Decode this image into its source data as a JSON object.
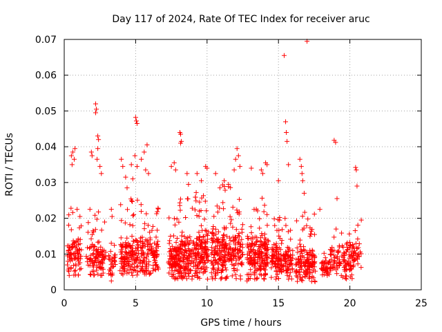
{
  "chart_data": {
    "type": "scatter",
    "title": "Day 117 of 2024, Rate Of TEC Index for receiver aruc",
    "xlabel": "GPS time / hours",
    "ylabel": "ROTI / TECUs",
    "xlim": [
      0,
      25
    ],
    "ylim": [
      0,
      0.07
    ],
    "xticks": [
      0,
      5,
      10,
      15,
      20,
      25
    ],
    "xtick_labels": [
      "0",
      "5",
      "10",
      "15",
      "20",
      "25"
    ],
    "yticks": [
      0,
      0.01,
      0.02,
      0.03,
      0.04,
      0.05,
      0.06,
      0.07
    ],
    "ytick_labels": [
      "0",
      "0.01",
      "0.02",
      "0.03",
      "0.04",
      "0.05",
      "0.06",
      "0.07"
    ],
    "grid": true,
    "marker": "plus",
    "color": "#ff0000",
    "clusters": [
      {
        "x": [
          0.2,
          1.2
        ],
        "y_range": [
          0.004,
          0.024
        ],
        "count": 90
      },
      {
        "x": [
          1.5,
          2.9
        ],
        "y_range": [
          0.004,
          0.022
        ],
        "count": 110
      },
      {
        "x": [
          3.1,
          3.6
        ],
        "y_range": [
          0.003,
          0.02
        ],
        "count": 30
      },
      {
        "x": [
          3.9,
          5.2
        ],
        "y_range": [
          0.004,
          0.026
        ],
        "count": 140
      },
      {
        "x": [
          5.3,
          6.6
        ],
        "y_range": [
          0.004,
          0.024
        ],
        "count": 130
      },
      {
        "x": [
          7.3,
          9.0
        ],
        "y_range": [
          0.003,
          0.026
        ],
        "count": 220
      },
      {
        "x": [
          9.0,
          10.1
        ],
        "y_range": [
          0.003,
          0.028
        ],
        "count": 150
      },
      {
        "x": [
          10.3,
          12.5
        ],
        "y_range": [
          0.003,
          0.03
        ],
        "count": 260
      },
      {
        "x": [
          12.8,
          14.3
        ],
        "y_range": [
          0.003,
          0.026
        ],
        "count": 200
      },
      {
        "x": [
          14.5,
          16.0
        ],
        "y_range": [
          0.003,
          0.022
        ],
        "count": 170
      },
      {
        "x": [
          16.2,
          17.6
        ],
        "y_range": [
          0.002,
          0.022
        ],
        "count": 150
      },
      {
        "x": [
          18.0,
          18.6
        ],
        "y_range": [
          0.004,
          0.012
        ],
        "count": 40
      },
      {
        "x": [
          18.6,
          20.3
        ],
        "y_range": [
          0.003,
          0.022
        ],
        "count": 120
      },
      {
        "x": [
          20.2,
          20.8
        ],
        "y_range": [
          0.006,
          0.02
        ],
        "count": 30
      }
    ],
    "points": [
      [
        0.5,
        0.0375
      ],
      [
        0.6,
        0.0385
      ],
      [
        0.7,
        0.0365
      ],
      [
        0.75,
        0.0395
      ],
      [
        0.55,
        0.035
      ],
      [
        0.9,
        0.0225
      ],
      [
        1.1,
        0.0205
      ],
      [
        1.8,
        0.0225
      ],
      [
        1.9,
        0.0385
      ],
      [
        1.95,
        0.0375
      ],
      [
        2.2,
        0.052
      ],
      [
        2.25,
        0.0505
      ],
      [
        2.2,
        0.0495
      ],
      [
        2.35,
        0.043
      ],
      [
        2.4,
        0.042
      ],
      [
        2.35,
        0.0395
      ],
      [
        2.3,
        0.0365
      ],
      [
        2.5,
        0.0345
      ],
      [
        2.6,
        0.0325
      ],
      [
        3.3,
        0.0225
      ],
      [
        3.35,
        0.0205
      ],
      [
        4.0,
        0.0365
      ],
      [
        4.1,
        0.0345
      ],
      [
        4.3,
        0.0315
      ],
      [
        4.4,
        0.0285
      ],
      [
        4.7,
        0.035
      ],
      [
        4.8,
        0.031
      ],
      [
        5.0,
        0.0482
      ],
      [
        5.05,
        0.0472
      ],
      [
        5.1,
        0.0465
      ],
      [
        4.95,
        0.0375
      ],
      [
        5.1,
        0.0345
      ],
      [
        5.4,
        0.0365
      ],
      [
        5.6,
        0.0385
      ],
      [
        5.7,
        0.0335
      ],
      [
        5.8,
        0.0405
      ],
      [
        5.9,
        0.0325
      ],
      [
        7.5,
        0.0345
      ],
      [
        7.7,
        0.0355
      ],
      [
        7.8,
        0.0335
      ],
      [
        8.1,
        0.044
      ],
      [
        8.15,
        0.0435
      ],
      [
        8.2,
        0.0415
      ],
      [
        8.15,
        0.041
      ],
      [
        8.6,
        0.0325
      ],
      [
        8.7,
        0.0295
      ],
      [
        9.3,
        0.0325
      ],
      [
        9.6,
        0.0305
      ],
      [
        9.9,
        0.0345
      ],
      [
        10.0,
        0.034
      ],
      [
        10.6,
        0.0325
      ],
      [
        10.9,
        0.0285
      ],
      [
        11.2,
        0.0305
      ],
      [
        11.5,
        0.0295
      ],
      [
        11.9,
        0.0335
      ],
      [
        12.0,
        0.0365
      ],
      [
        12.1,
        0.0395
      ],
      [
        12.2,
        0.0375
      ],
      [
        12.3,
        0.0345
      ],
      [
        13.1,
        0.034
      ],
      [
        13.8,
        0.0335
      ],
      [
        13.9,
        0.0325
      ],
      [
        14.1,
        0.0355
      ],
      [
        14.2,
        0.035
      ],
      [
        15.0,
        0.0305
      ],
      [
        15.4,
        0.0655
      ],
      [
        15.5,
        0.047
      ],
      [
        15.55,
        0.044
      ],
      [
        15.6,
        0.0415
      ],
      [
        15.7,
        0.035
      ],
      [
        16.5,
        0.0365
      ],
      [
        16.6,
        0.0345
      ],
      [
        16.65,
        0.0325
      ],
      [
        16.7,
        0.0305
      ],
      [
        16.8,
        0.027
      ],
      [
        17.0,
        0.0695
      ],
      [
        17.9,
        0.0225
      ],
      [
        18.9,
        0.0418
      ],
      [
        19.0,
        0.0412
      ],
      [
        19.1,
        0.0255
      ],
      [
        20.4,
        0.0342
      ],
      [
        20.45,
        0.0335
      ],
      [
        20.5,
        0.029
      ],
      [
        20.8,
        0.0195
      ],
      [
        19.5,
        0.0035
      ],
      [
        19.4,
        0.004
      ],
      [
        3.3,
        0.0025
      ],
      [
        12.8,
        0.0025
      ]
    ]
  }
}
